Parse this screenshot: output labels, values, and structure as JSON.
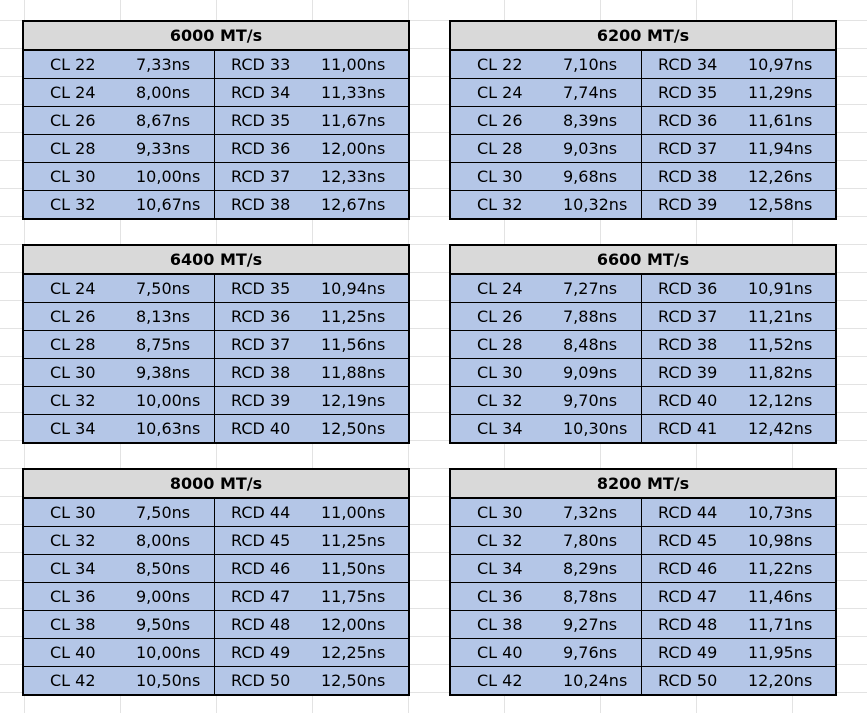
{
  "tables": [
    {
      "title": "6000 MT/s",
      "rows": [
        [
          "CL 22",
          "7,33ns",
          "RCD 33",
          "11,00ns"
        ],
        [
          "CL 24",
          "8,00ns",
          "RCD 34",
          "11,33ns"
        ],
        [
          "CL 26",
          "8,67ns",
          "RCD 35",
          "11,67ns"
        ],
        [
          "CL 28",
          "9,33ns",
          "RCD 36",
          "12,00ns"
        ],
        [
          "CL 30",
          "10,00ns",
          "RCD 37",
          "12,33ns"
        ],
        [
          "CL 32",
          "10,67ns",
          "RCD 38",
          "12,67ns"
        ]
      ]
    },
    {
      "title": "6200 MT/s",
      "rows": [
        [
          "CL 22",
          "7,10ns",
          "RCD 34",
          "10,97ns"
        ],
        [
          "CL 24",
          "7,74ns",
          "RCD 35",
          "11,29ns"
        ],
        [
          "CL 26",
          "8,39ns",
          "RCD 36",
          "11,61ns"
        ],
        [
          "CL 28",
          "9,03ns",
          "RCD 37",
          "11,94ns"
        ],
        [
          "CL 30",
          "9,68ns",
          "RCD 38",
          "12,26ns"
        ],
        [
          "CL 32",
          "10,32ns",
          "RCD 39",
          "12,58ns"
        ]
      ]
    },
    {
      "title": "6400 MT/s",
      "rows": [
        [
          "CL 24",
          "7,50ns",
          "RCD 35",
          "10,94ns"
        ],
        [
          "CL 26",
          "8,13ns",
          "RCD 36",
          "11,25ns"
        ],
        [
          "CL 28",
          "8,75ns",
          "RCD 37",
          "11,56ns"
        ],
        [
          "CL 30",
          "9,38ns",
          "RCD 38",
          "11,88ns"
        ],
        [
          "CL 32",
          "10,00ns",
          "RCD 39",
          "12,19ns"
        ],
        [
          "CL 34",
          "10,63ns",
          "RCD 40",
          "12,50ns"
        ]
      ]
    },
    {
      "title": "6600 MT/s",
      "rows": [
        [
          "CL 24",
          "7,27ns",
          "RCD 36",
          "10,91ns"
        ],
        [
          "CL 26",
          "7,88ns",
          "RCD 37",
          "11,21ns"
        ],
        [
          "CL 28",
          "8,48ns",
          "RCD 38",
          "11,52ns"
        ],
        [
          "CL 30",
          "9,09ns",
          "RCD 39",
          "11,82ns"
        ],
        [
          "CL 32",
          "9,70ns",
          "RCD 40",
          "12,12ns"
        ],
        [
          "CL 34",
          "10,30ns",
          "RCD 41",
          "12,42ns"
        ]
      ]
    },
    {
      "title": "8000 MT/s",
      "rows": [
        [
          "CL 30",
          "7,50ns",
          "RCD 44",
          "11,00ns"
        ],
        [
          "CL 32",
          "8,00ns",
          "RCD 45",
          "11,25ns"
        ],
        [
          "CL 34",
          "8,50ns",
          "RCD 46",
          "11,50ns"
        ],
        [
          "CL 36",
          "9,00ns",
          "RCD 47",
          "11,75ns"
        ],
        [
          "CL 38",
          "9,50ns",
          "RCD 48",
          "12,00ns"
        ],
        [
          "CL 40",
          "10,00ns",
          "RCD 49",
          "12,25ns"
        ],
        [
          "CL 42",
          "10,50ns",
          "RCD 50",
          "12,50ns"
        ]
      ]
    },
    {
      "title": "8200 MT/s",
      "rows": [
        [
          "CL 30",
          "7,32ns",
          "RCD 44",
          "10,73ns"
        ],
        [
          "CL 32",
          "7,80ns",
          "RCD 45",
          "10,98ns"
        ],
        [
          "CL 34",
          "8,29ns",
          "RCD 46",
          "11,22ns"
        ],
        [
          "CL 36",
          "8,78ns",
          "RCD 47",
          "11,46ns"
        ],
        [
          "CL 38",
          "9,27ns",
          "RCD 48",
          "11,71ns"
        ],
        [
          "CL 40",
          "9,76ns",
          "RCD 49",
          "11,95ns"
        ],
        [
          "CL 42",
          "10,24ns",
          "RCD 50",
          "12,20ns"
        ]
      ]
    }
  ]
}
